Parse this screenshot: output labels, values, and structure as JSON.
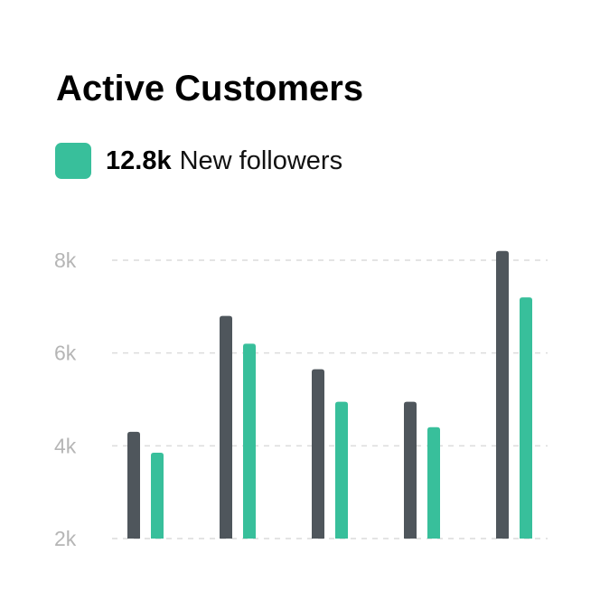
{
  "header": {
    "title": "Active Customers"
  },
  "legend": {
    "value": "12.8k",
    "label": "New followers",
    "swatch_color": "#38bf9b"
  },
  "chart_data": {
    "type": "bar",
    "title": "Active Customers",
    "xlabel": "",
    "ylabel": "",
    "categories": [
      "",
      "",
      "",
      "",
      ""
    ],
    "series": [
      {
        "color": "#4f565c",
        "values": [
          4.3,
          6.8,
          5.65,
          4.95,
          8.2
        ]
      },
      {
        "name": "New followers",
        "color": "#38bf9b",
        "values": [
          3.85,
          6.2,
          4.95,
          4.4,
          7.2
        ]
      }
    ],
    "yticks": [
      2,
      4,
      6,
      8
    ],
    "ytick_labels": [
      "2k",
      "4k",
      "6k",
      "8k"
    ],
    "ylim": [
      2,
      8
    ],
    "grid": true,
    "grid_style": "dashed"
  }
}
